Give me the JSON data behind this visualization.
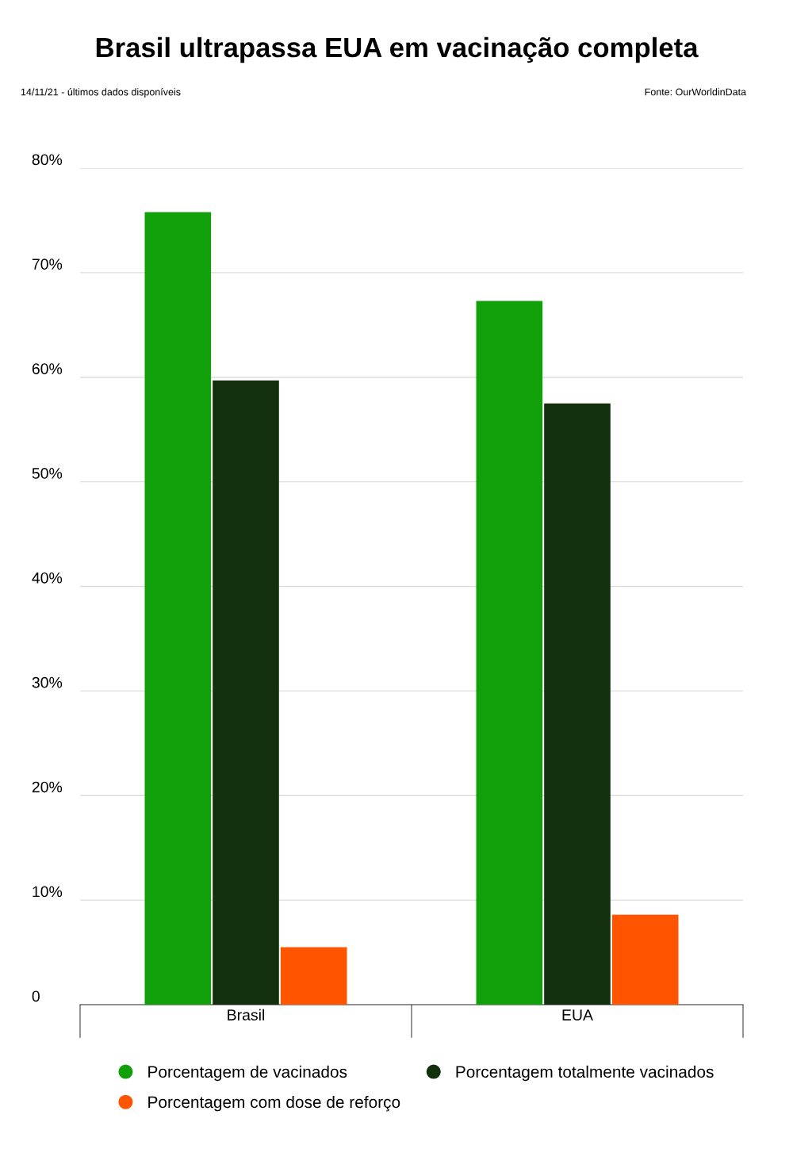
{
  "chart_data": {
    "type": "bar",
    "title": "Brasil ultrapassa EUA em vacinação completa",
    "annotations": [
      "14/11/21 - últimos dados disponíveis",
      "Fonte: OurWorldinData"
    ],
    "categories": [
      "Brasil",
      "EUA"
    ],
    "series": [
      {
        "name": "Porcentagem de vacinados",
        "color": "#12a00a",
        "values": [
          75.8,
          67.3
        ]
      },
      {
        "name": "Porcentagem totalmente vacinados",
        "color": "#12300c",
        "values": [
          59.7,
          57.5
        ]
      },
      {
        "name": "Porcentagem com dose de reforço",
        "color": "#ff5400",
        "values": [
          5.5,
          8.6
        ]
      }
    ],
    "ylim": [
      0,
      80
    ],
    "yticks": [
      {
        "value": 0,
        "label": "0"
      },
      {
        "value": 10,
        "label": "10%"
      },
      {
        "value": 20,
        "label": "20%"
      },
      {
        "value": 30,
        "label": "30%"
      },
      {
        "value": 40,
        "label": "40%"
      },
      {
        "value": 50,
        "label": "50%"
      },
      {
        "value": 60,
        "label": "60%"
      },
      {
        "value": 70,
        "label": "70%"
      },
      {
        "value": 80,
        "label": "80%"
      }
    ],
    "grid": "y",
    "legend": "bottom"
  }
}
